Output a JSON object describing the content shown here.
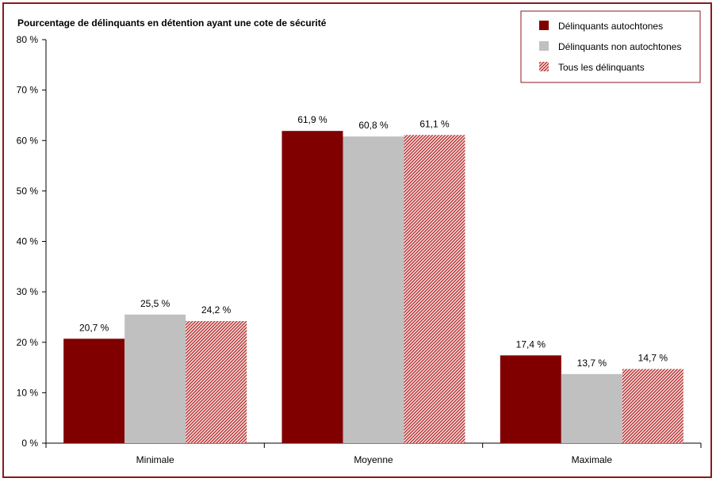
{
  "chart_data": {
    "type": "bar",
    "title": "Pourcentage de délinquants en détention ayant une cote de sécurité",
    "xlabel": "",
    "ylabel": "",
    "categories": [
      "Minimale",
      "Moyenne",
      "Maximale"
    ],
    "series": [
      {
        "name": "Délinquants autochtones",
        "values": [
          20.7,
          61.9,
          17.4
        ],
        "labels": [
          "20,7 %",
          "61,9 %",
          "17,4 %"
        ],
        "color": "#800000",
        "pattern": "solid"
      },
      {
        "name": "Délinquants non autochtones",
        "values": [
          25.5,
          60.8,
          13.7
        ],
        "labels": [
          "25,5 %",
          "60,8 %",
          "13,7 %"
        ],
        "color": "#c0c0c0",
        "pattern": "solid"
      },
      {
        "name": "Tous les délinquants",
        "values": [
          24.2,
          61.1,
          14.7
        ],
        "labels": [
          "24,2 %",
          "61,1 %",
          "14,7 %"
        ],
        "color": "#b22222",
        "pattern": "hatched"
      }
    ],
    "ylim": [
      0,
      80
    ],
    "yticks": [
      0,
      10,
      20,
      30,
      40,
      50,
      60,
      70,
      80
    ],
    "ytick_labels": [
      "0 %",
      "10 %",
      "20 %",
      "30 %",
      "40 %",
      "50 %",
      "60 %",
      "70 %",
      "80 %"
    ],
    "grid": false,
    "legend_position": "top-right",
    "frame_color": "#8b1a1a"
  }
}
